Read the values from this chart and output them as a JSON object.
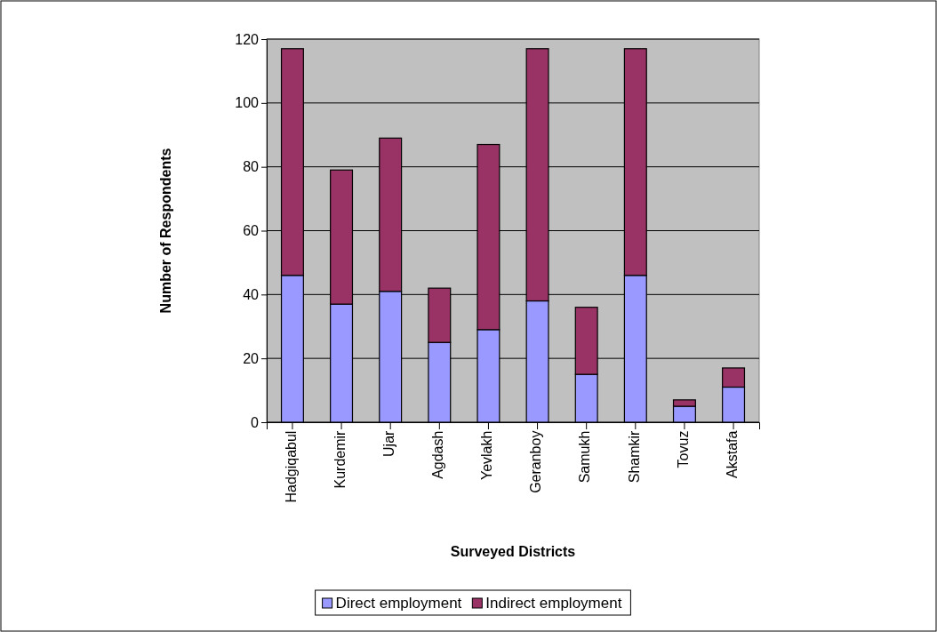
{
  "chart_data": {
    "type": "bar",
    "stacked": true,
    "xlabel": "Surveyed Districts",
    "ylabel": "Number of Respondents",
    "categories": [
      "Hadgiqabul",
      "Kurdemir",
      "Ujar",
      "Agdash",
      "Yevlakh",
      "Geranboy",
      "Samukh",
      "Shamkir",
      "Tovuz",
      "Akstafa"
    ],
    "series": [
      {
        "name": "Direct employment",
        "color": "#9999ff",
        "values": [
          46,
          37,
          41,
          25,
          29,
          38,
          15,
          46,
          5,
          11
        ]
      },
      {
        "name": "Indirect employment",
        "color": "#993366",
        "values": [
          71,
          42,
          48,
          17,
          58,
          79,
          21,
          71,
          2,
          6
        ]
      }
    ],
    "ylim": [
      0,
      120
    ],
    "yticks": [
      0,
      20,
      40,
      60,
      80,
      100,
      120
    ],
    "grid": "y",
    "legend": "bottom"
  }
}
